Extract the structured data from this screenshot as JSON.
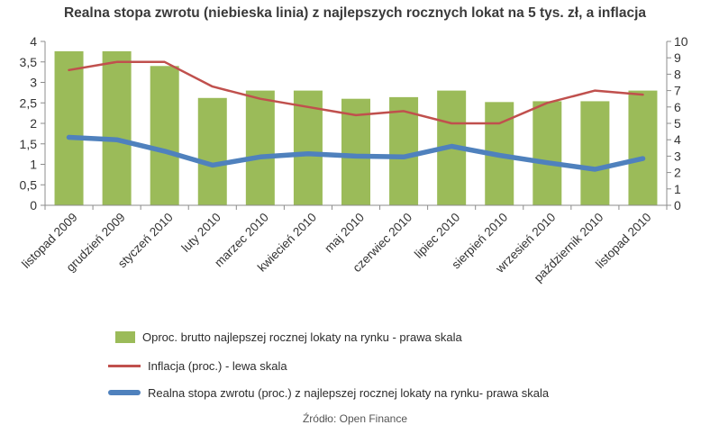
{
  "chart_data": {
    "type": "bar",
    "title": "Realna stopa zwrotu (niebieska linia) z najlepszych rocznych lokat na 5 tys. zł, a inflacja",
    "categories": [
      "listopad 2009",
      "grudzień 2009",
      "styczeń 2010",
      "luty 2010",
      "marzec 2010",
      "kwiecień 2010",
      "maj 2010",
      "czerwiec 2010",
      "lipiec 2010",
      "sierpień 2010",
      "wrzesień 2010",
      "październik 2010",
      "listopad 2010"
    ],
    "left_axis": {
      "ylim": [
        0,
        4
      ],
      "ticks": [
        "0",
        "0,5",
        "1",
        "1,5",
        "2",
        "2,5",
        "3",
        "3,5",
        "4"
      ]
    },
    "right_axis": {
      "ylim": [
        0,
        10
      ],
      "ticks": [
        "0",
        "1",
        "2",
        "3",
        "4",
        "5",
        "6",
        "7",
        "8",
        "9",
        "10"
      ]
    },
    "grid": false,
    "legend_position": "bottom",
    "series": [
      {
        "name": "Oproc. brutto najlepszej rocznej lokaty na rynku - prawa skala",
        "type": "bar",
        "axis": "right",
        "color": "#9bbb59",
        "values": [
          9.4,
          9.4,
          8.5,
          6.55,
          7.0,
          7.0,
          6.5,
          6.6,
          7.0,
          6.3,
          6.35,
          6.35,
          7.0
        ]
      },
      {
        "name": "Inflacja (proc.) - lewa skala",
        "type": "line",
        "axis": "left",
        "color": "#c0504d",
        "values": [
          3.3,
          3.5,
          3.5,
          2.9,
          2.6,
          2.4,
          2.2,
          2.3,
          2.0,
          2.0,
          2.5,
          2.8,
          2.7
        ]
      },
      {
        "name": "Realna stopa zwrotu (proc.) z najlepszej rocznej lokaty na rynku- prawa skala",
        "type": "line",
        "axis": "right",
        "color": "#4f81bd",
        "values": [
          4.15,
          4.0,
          3.3,
          2.45,
          2.95,
          3.15,
          3.0,
          2.95,
          3.6,
          3.05,
          2.6,
          2.2,
          2.85
        ]
      }
    ]
  },
  "source": "Źródło: Open Finance"
}
